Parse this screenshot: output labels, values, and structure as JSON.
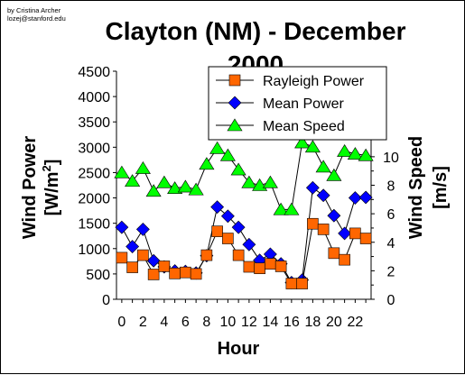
{
  "credit": {
    "line1": "by Cristina Archer",
    "line2": "lozej@stanford.edu"
  },
  "chart_data": {
    "type": "line",
    "title_line1": "Clayton (NM) - December",
    "title_line2": "2000",
    "xlabel": "Hour",
    "ylabel_left": "Wind Power",
    "ylabel_left_unit": "[W/m",
    "ylabel_left_unit_sup": "2",
    "ylabel_left_unit_close": "]",
    "ylabel_right_line1": "Wind Speed",
    "ylabel_right_line2": "[m/s]",
    "x": [
      0,
      1,
      2,
      3,
      4,
      5,
      6,
      7,
      8,
      9,
      10,
      11,
      12,
      13,
      14,
      15,
      16,
      17,
      18,
      19,
      20,
      21,
      22,
      23
    ],
    "x_tick_labels": [
      "0",
      "2",
      "4",
      "6",
      "8",
      "10",
      "12",
      "14",
      "16",
      "18",
      "20",
      "22"
    ],
    "x_tick_values": [
      0,
      2,
      4,
      6,
      8,
      10,
      12,
      14,
      16,
      18,
      20,
      22
    ],
    "xlim": [
      -0.5,
      23.5
    ],
    "ylim_left": [
      0,
      4500
    ],
    "y_left_ticks": [
      "0",
      "500",
      "1000",
      "1500",
      "2000",
      "2500",
      "3000",
      "3500",
      "4000",
      "4500"
    ],
    "ylim_right": [
      0,
      16
    ],
    "y_right_ticks": [
      "0",
      "2",
      "4",
      "6",
      "8",
      "10"
    ],
    "y_right_ticks_values": [
      0,
      2,
      4,
      6,
      8,
      10
    ],
    "grid": false,
    "legend_position": "top-right",
    "series": [
      {
        "name": "Rayleigh Power",
        "axis": "left",
        "marker": "square",
        "color": "#ff6600",
        "values": [
          820,
          630,
          870,
          490,
          650,
          510,
          530,
          500,
          870,
          1340,
          1200,
          870,
          640,
          610,
          700,
          650,
          310,
          310,
          1490,
          1380,
          910,
          780,
          1300,
          1200
        ]
      },
      {
        "name": "Mean Power",
        "axis": "left",
        "marker": "diamond",
        "color": "#0000ff",
        "values": [
          1420,
          1040,
          1380,
          760,
          640,
          560,
          550,
          520,
          860,
          1820,
          1640,
          1420,
          1080,
          770,
          890,
          700,
          330,
          380,
          2200,
          2050,
          1650,
          1300,
          2000,
          2010
        ]
      },
      {
        "name": "Mean Speed",
        "axis": "right",
        "marker": "triangle",
        "color": "#00ff00",
        "values": [
          8.9,
          8.3,
          9.2,
          7.6,
          8.2,
          7.8,
          7.9,
          7.7,
          9.5,
          10.6,
          10.1,
          9.1,
          8.2,
          8.0,
          8.2,
          6.3,
          6.3,
          11.0,
          10.7,
          9.3,
          8.7,
          10.4,
          10.2,
          10.1
        ]
      }
    ]
  }
}
